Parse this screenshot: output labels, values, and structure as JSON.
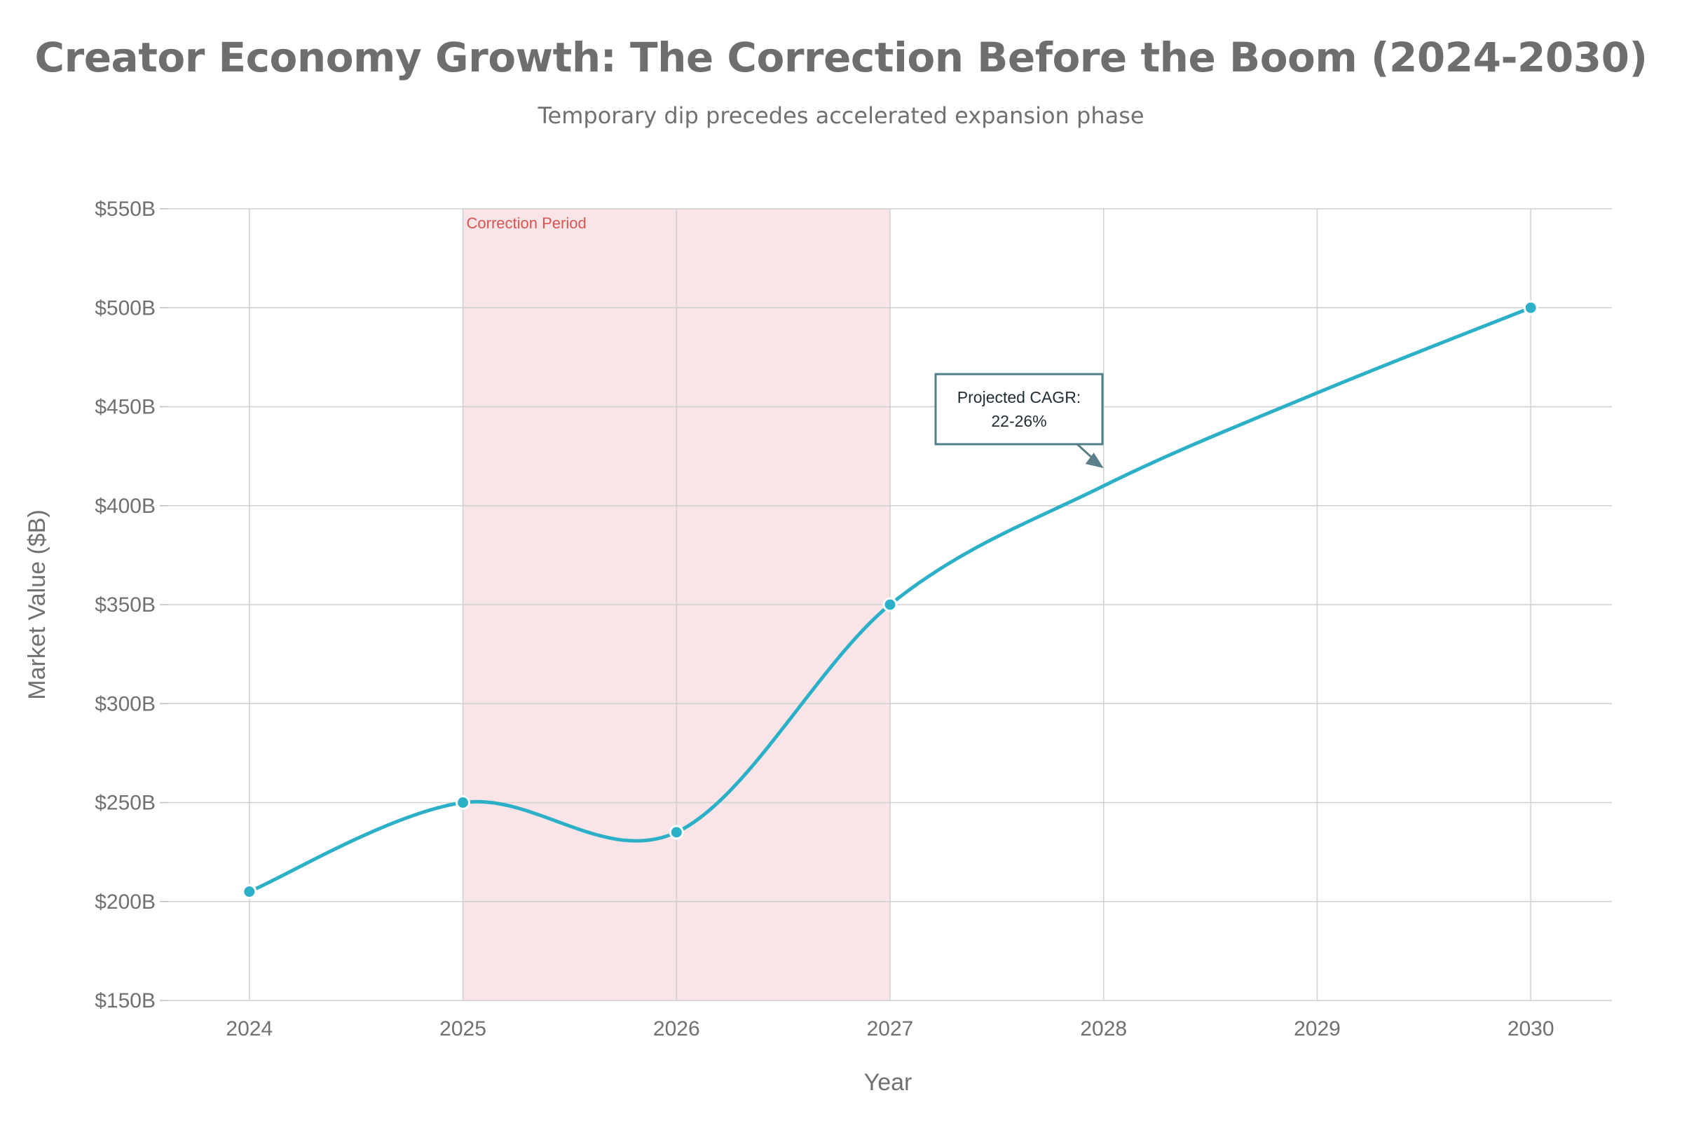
{
  "chart_data": {
    "type": "line",
    "title": "Creator Economy Growth: The Correction Before the Boom (2024-2030)",
    "subtitle": "Temporary dip precedes accelerated expansion phase",
    "xlabel": "Year",
    "ylabel": "Market Value ($B)",
    "x": [
      2024,
      2025,
      2026,
      2027,
      2028,
      2029,
      2030
    ],
    "x_tick_labels": [
      "2024",
      "2025",
      "2026",
      "2027",
      "2028",
      "2029",
      "2030"
    ],
    "xlim": [
      2023.62,
      2030.38
    ],
    "ylim": [
      150,
      550
    ],
    "y_ticks": [
      150,
      200,
      250,
      300,
      350,
      400,
      450,
      500,
      550
    ],
    "y_tick_labels": [
      "$150B",
      "$200B",
      "$250B",
      "$300B",
      "$350B",
      "$400B",
      "$450B",
      "$500B",
      "$550B"
    ],
    "series": [
      {
        "name": "Market Value",
        "color": "#2bb0c8",
        "points": [
          {
            "x": 2024,
            "y": 205
          },
          {
            "x": 2025,
            "y": 250
          },
          {
            "x": 2026,
            "y": 235
          },
          {
            "x": 2027,
            "y": 350
          },
          {
            "x": 2030,
            "y": 500
          }
        ],
        "interpolated_path": [
          {
            "x": 2028,
            "y": 410
          },
          {
            "x": 2029,
            "y": 457
          }
        ]
      }
    ],
    "shaded_region": {
      "x_start": 2025,
      "x_end": 2027,
      "label": "Correction Period",
      "color": "#f4cfd3"
    },
    "annotation": {
      "line1": "Projected CAGR:",
      "line2": "22-26%",
      "arrow_to": {
        "x": 2028,
        "y": 419
      }
    },
    "grid": true,
    "colors": {
      "line": "#2bb0c8",
      "grid": "#cfcfcf",
      "text": "#707070",
      "annotation_border": "#4f7f87",
      "band_text": "#d9534f"
    }
  }
}
